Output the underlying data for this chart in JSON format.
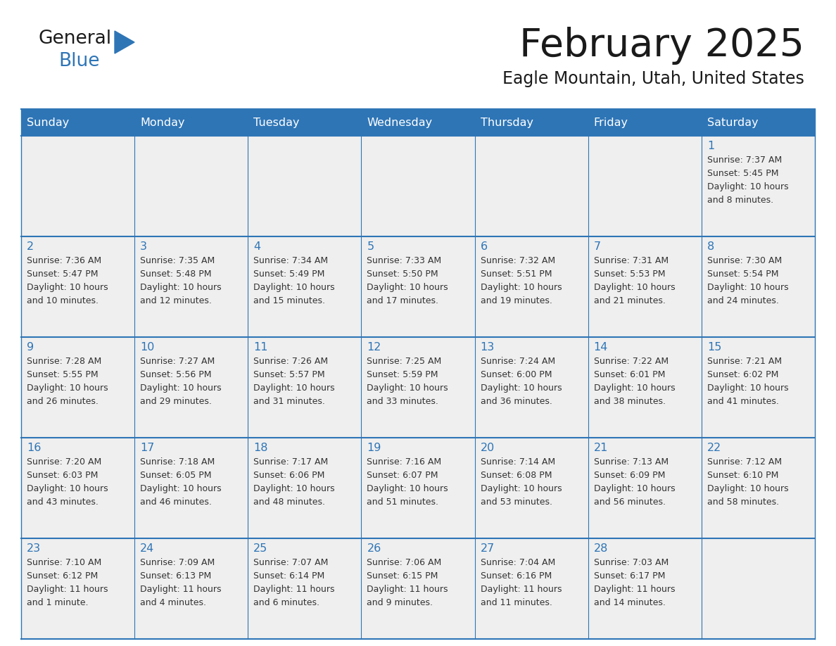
{
  "title": "February 2025",
  "subtitle": "Eagle Mountain, Utah, United States",
  "header_bg_color": "#2E75B6",
  "header_text_color": "#FFFFFF",
  "cell_bg_color": "#EFEFEF",
  "cell_text_color": "#333333",
  "day_number_color": "#2E75B6",
  "border_color": "#2E75B6",
  "bg_color": "#FFFFFF",
  "days_of_week": [
    "Sunday",
    "Monday",
    "Tuesday",
    "Wednesday",
    "Thursday",
    "Friday",
    "Saturday"
  ],
  "weeks": [
    [
      {
        "day": "",
        "info": ""
      },
      {
        "day": "",
        "info": ""
      },
      {
        "day": "",
        "info": ""
      },
      {
        "day": "",
        "info": ""
      },
      {
        "day": "",
        "info": ""
      },
      {
        "day": "",
        "info": ""
      },
      {
        "day": "1",
        "info": "Sunrise: 7:37 AM\nSunset: 5:45 PM\nDaylight: 10 hours\nand 8 minutes."
      }
    ],
    [
      {
        "day": "2",
        "info": "Sunrise: 7:36 AM\nSunset: 5:47 PM\nDaylight: 10 hours\nand 10 minutes."
      },
      {
        "day": "3",
        "info": "Sunrise: 7:35 AM\nSunset: 5:48 PM\nDaylight: 10 hours\nand 12 minutes."
      },
      {
        "day": "4",
        "info": "Sunrise: 7:34 AM\nSunset: 5:49 PM\nDaylight: 10 hours\nand 15 minutes."
      },
      {
        "day": "5",
        "info": "Sunrise: 7:33 AM\nSunset: 5:50 PM\nDaylight: 10 hours\nand 17 minutes."
      },
      {
        "day": "6",
        "info": "Sunrise: 7:32 AM\nSunset: 5:51 PM\nDaylight: 10 hours\nand 19 minutes."
      },
      {
        "day": "7",
        "info": "Sunrise: 7:31 AM\nSunset: 5:53 PM\nDaylight: 10 hours\nand 21 minutes."
      },
      {
        "day": "8",
        "info": "Sunrise: 7:30 AM\nSunset: 5:54 PM\nDaylight: 10 hours\nand 24 minutes."
      }
    ],
    [
      {
        "day": "9",
        "info": "Sunrise: 7:28 AM\nSunset: 5:55 PM\nDaylight: 10 hours\nand 26 minutes."
      },
      {
        "day": "10",
        "info": "Sunrise: 7:27 AM\nSunset: 5:56 PM\nDaylight: 10 hours\nand 29 minutes."
      },
      {
        "day": "11",
        "info": "Sunrise: 7:26 AM\nSunset: 5:57 PM\nDaylight: 10 hours\nand 31 minutes."
      },
      {
        "day": "12",
        "info": "Sunrise: 7:25 AM\nSunset: 5:59 PM\nDaylight: 10 hours\nand 33 minutes."
      },
      {
        "day": "13",
        "info": "Sunrise: 7:24 AM\nSunset: 6:00 PM\nDaylight: 10 hours\nand 36 minutes."
      },
      {
        "day": "14",
        "info": "Sunrise: 7:22 AM\nSunset: 6:01 PM\nDaylight: 10 hours\nand 38 minutes."
      },
      {
        "day": "15",
        "info": "Sunrise: 7:21 AM\nSunset: 6:02 PM\nDaylight: 10 hours\nand 41 minutes."
      }
    ],
    [
      {
        "day": "16",
        "info": "Sunrise: 7:20 AM\nSunset: 6:03 PM\nDaylight: 10 hours\nand 43 minutes."
      },
      {
        "day": "17",
        "info": "Sunrise: 7:18 AM\nSunset: 6:05 PM\nDaylight: 10 hours\nand 46 minutes."
      },
      {
        "day": "18",
        "info": "Sunrise: 7:17 AM\nSunset: 6:06 PM\nDaylight: 10 hours\nand 48 minutes."
      },
      {
        "day": "19",
        "info": "Sunrise: 7:16 AM\nSunset: 6:07 PM\nDaylight: 10 hours\nand 51 minutes."
      },
      {
        "day": "20",
        "info": "Sunrise: 7:14 AM\nSunset: 6:08 PM\nDaylight: 10 hours\nand 53 minutes."
      },
      {
        "day": "21",
        "info": "Sunrise: 7:13 AM\nSunset: 6:09 PM\nDaylight: 10 hours\nand 56 minutes."
      },
      {
        "day": "22",
        "info": "Sunrise: 7:12 AM\nSunset: 6:10 PM\nDaylight: 10 hours\nand 58 minutes."
      }
    ],
    [
      {
        "day": "23",
        "info": "Sunrise: 7:10 AM\nSunset: 6:12 PM\nDaylight: 11 hours\nand 1 minute."
      },
      {
        "day": "24",
        "info": "Sunrise: 7:09 AM\nSunset: 6:13 PM\nDaylight: 11 hours\nand 4 minutes."
      },
      {
        "day": "25",
        "info": "Sunrise: 7:07 AM\nSunset: 6:14 PM\nDaylight: 11 hours\nand 6 minutes."
      },
      {
        "day": "26",
        "info": "Sunrise: 7:06 AM\nSunset: 6:15 PM\nDaylight: 11 hours\nand 9 minutes."
      },
      {
        "day": "27",
        "info": "Sunrise: 7:04 AM\nSunset: 6:16 PM\nDaylight: 11 hours\nand 11 minutes."
      },
      {
        "day": "28",
        "info": "Sunrise: 7:03 AM\nSunset: 6:17 PM\nDaylight: 11 hours\nand 14 minutes."
      },
      {
        "day": "",
        "info": ""
      }
    ]
  ]
}
